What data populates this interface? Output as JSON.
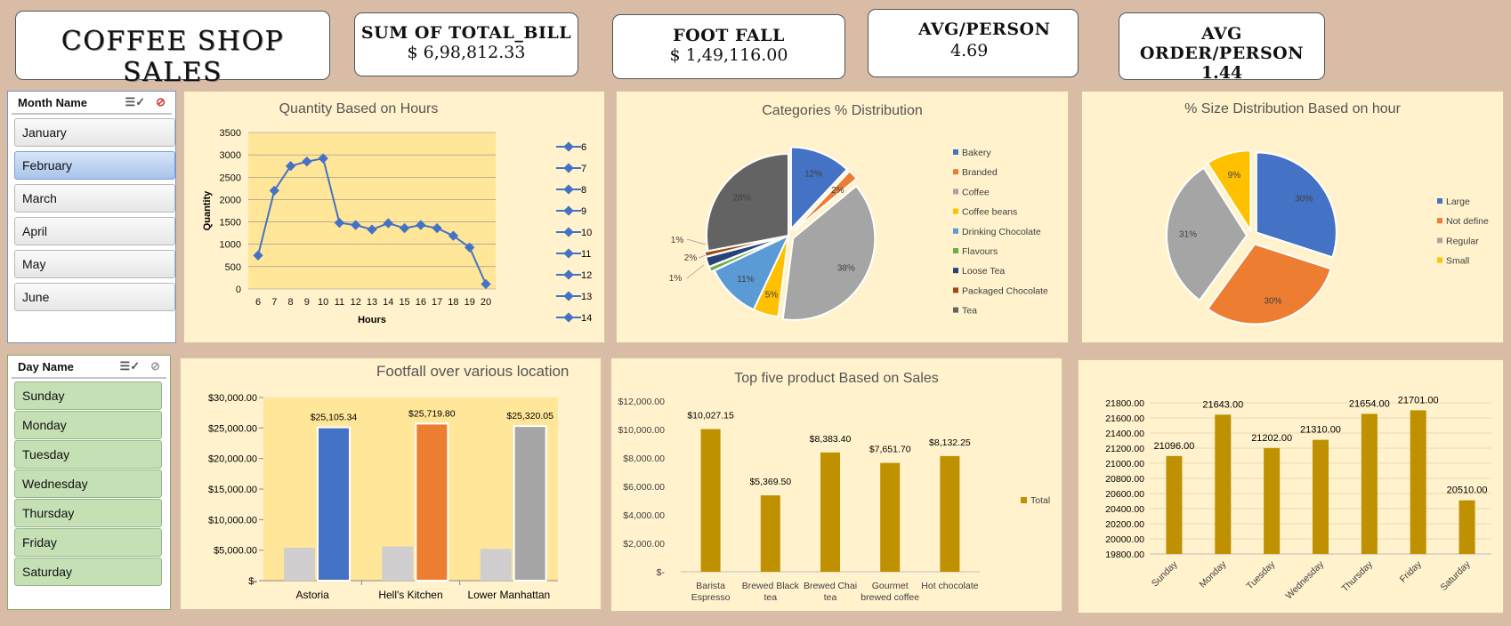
{
  "kpis": {
    "title": "COFFEE SHOP SALES",
    "total_bill_label": "SUM OF TOTAL_BILL",
    "total_bill_value": "$ 6,98,812.33",
    "footfall_label": "FOOT FALL",
    "footfall_value": "$ 1,49,116.00",
    "avg_person_label": "AVG/PERSON",
    "avg_person_value": "4.69",
    "avg_order_label": "AVG ORDER/PERSON",
    "avg_order_value": "1.44"
  },
  "month_slicer": {
    "header": "Month Name",
    "items": [
      "January",
      "February",
      "March",
      "April",
      "May",
      "June"
    ],
    "selected": "February"
  },
  "day_slicer": {
    "header": "Day Name",
    "items": [
      "Sunday",
      "Monday",
      "Tuesday",
      "Wednesday",
      "Thursday",
      "Friday",
      "Saturday"
    ]
  },
  "colors": {
    "line": "#4472c4",
    "bar_gold": "#bf9000",
    "plot_yellow": "#ffe699",
    "panel": "#fff2cc"
  },
  "chart_data": [
    {
      "id": "qty_hours",
      "type": "line",
      "title": "Quantity Based on Hours",
      "xlabel": "Hours",
      "ylabel": "Quantity",
      "x": [
        6,
        7,
        8,
        9,
        10,
        11,
        12,
        13,
        14,
        15,
        16,
        17,
        18,
        19,
        20
      ],
      "values": [
        750,
        2200,
        2750,
        2850,
        2920,
        1480,
        1430,
        1330,
        1470,
        1360,
        1430,
        1360,
        1190,
        930,
        110
      ],
      "ylim": [
        0,
        3500
      ],
      "yticks": [
        0,
        500,
        1000,
        1500,
        2000,
        2500,
        3000,
        3500
      ],
      "legend": [
        "6",
        "7",
        "8",
        "9",
        "10",
        "11",
        "12",
        "13",
        "14"
      ],
      "grid": true,
      "legend_position": "right"
    },
    {
      "id": "categories",
      "type": "pie",
      "title": "Categories % Distribution",
      "categories": [
        "Bakery",
        "Branded",
        "Coffee",
        "Coffee beans",
        "Drinking Chocolate",
        "Flavours",
        "Loose Tea",
        "Packaged Chocolate",
        "Tea"
      ],
      "values": [
        12,
        2,
        38,
        5,
        11,
        1,
        2,
        1,
        28
      ],
      "labels": [
        "12%",
        "2%",
        "38%",
        "5%",
        "11%",
        "1%",
        "2%",
        "1%",
        "28%"
      ],
      "colors": [
        "#4472c4",
        "#ed7d31",
        "#a5a5a5",
        "#ffc000",
        "#5b9bd5",
        "#70ad47",
        "#264478",
        "#9e480e",
        "#636363"
      ],
      "legend_position": "right"
    },
    {
      "id": "size",
      "type": "pie",
      "title": "% Size Distribution Based on hour",
      "categories": [
        "Large",
        "Not define",
        "Regular",
        "Small"
      ],
      "values": [
        30,
        30,
        31,
        9
      ],
      "labels": [
        "30%",
        "30%",
        "31%",
        "9%"
      ],
      "colors": [
        "#4472c4",
        "#ed7d31",
        "#a5a5a5",
        "#ffc000"
      ],
      "legend_position": "right"
    },
    {
      "id": "footfall",
      "type": "bar",
      "title": "Footfall over various location",
      "categories": [
        "Astoria",
        "Hell's Kitchen",
        "Lower Manhattan"
      ],
      "values": [
        25105.34,
        25719.8,
        25320.05
      ],
      "value_labels": [
        "$25,105.34",
        "$25,719.80",
        "$25,320.05"
      ],
      "secondary_values": [
        5400,
        5600,
        5200
      ],
      "colors": [
        "#4472c4",
        "#ed7d31",
        "#a5a5a5"
      ],
      "ylim": [
        0,
        30000
      ],
      "yticks": [
        "$-",
        "$5,000.00",
        "$10,000.00",
        "$15,000.00",
        "$20,000.00",
        "$25,000.00",
        "$30,000.00"
      ]
    },
    {
      "id": "top_products",
      "type": "bar",
      "title": "Top five product Based on Sales",
      "categories": [
        [
          "Barista",
          "Espresso"
        ],
        [
          "Brewed Black",
          "tea"
        ],
        [
          "Brewed Chai",
          "tea"
        ],
        [
          "Gourmet",
          "brewed coffee"
        ],
        [
          "Hot chocolate"
        ]
      ],
      "values": [
        10027.15,
        5369.5,
        8383.4,
        7651.7,
        8132.25
      ],
      "value_labels": [
        "$10,027.15",
        "$5,369.50",
        "$8,383.40",
        "$7,651.70",
        "$8,132.25"
      ],
      "ylim": [
        0,
        12000
      ],
      "yticks": [
        "$-",
        "$2,000.00",
        "$4,000.00",
        "$6,000.00",
        "$8,000.00",
        "$10,000.00",
        "$12,000.00"
      ],
      "legend": [
        "Total"
      ],
      "legend_position": "right"
    },
    {
      "id": "days",
      "type": "bar",
      "categories": [
        "Sunday",
        "Monday",
        "Tuesday",
        "Wednesday",
        "Thursday",
        "Friday",
        "Saturday"
      ],
      "values": [
        21096,
        21643,
        21202,
        21310,
        21654,
        21701,
        20510
      ],
      "value_labels": [
        "21096.00",
        "21643.00",
        "21202.00",
        "21310.00",
        "21654.00",
        "21701.00",
        "20510.00"
      ],
      "ylim": [
        19800,
        21800
      ],
      "yticks": [
        "19800.00",
        "20000.00",
        "20200.00",
        "20400.00",
        "20600.00",
        "20800.00",
        "21000.00",
        "21200.00",
        "21400.00",
        "21600.00",
        "21800.00"
      ],
      "grid": true
    }
  ]
}
